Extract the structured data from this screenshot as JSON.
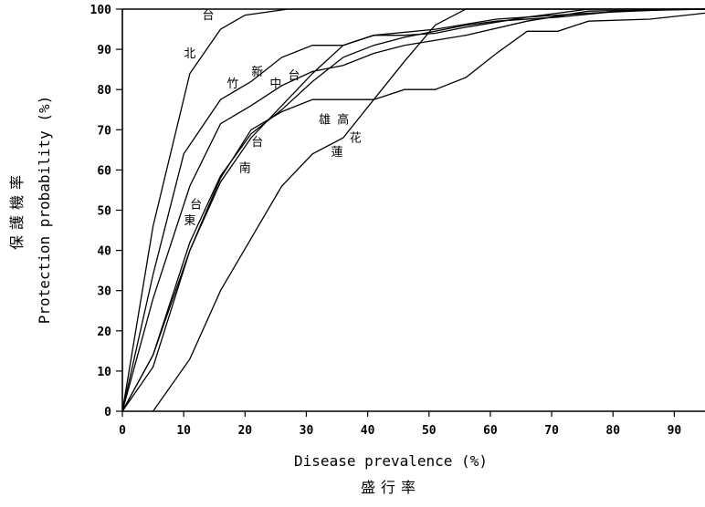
{
  "chart_data": {
    "type": "line",
    "xlabel": "Disease prevalence (%)",
    "xlabel_zh": "盛行率",
    "ylabel": "Protection probability (%)",
    "ylabel_zh": "保護機率",
    "xlim": [
      0,
      95
    ],
    "ylim": [
      0,
      100
    ],
    "xticks": [
      0,
      10,
      20,
      30,
      40,
      50,
      60,
      70,
      80,
      90
    ],
    "yticks": [
      0,
      10,
      20,
      30,
      40,
      50,
      60,
      70,
      80,
      90,
      100
    ],
    "grid": false,
    "series": [
      {
        "name": "台北",
        "x": [
          0,
          5,
          11,
          16,
          20,
          27,
          95
        ],
        "y": [
          0,
          46,
          84,
          95,
          98.5,
          100,
          100
        ]
      },
      {
        "name": "新竹",
        "x": [
          0,
          5,
          10,
          16,
          21,
          26,
          31,
          36,
          41,
          51,
          61,
          76,
          91,
          95
        ],
        "y": [
          0,
          34,
          64,
          77.5,
          82,
          88,
          91,
          91,
          93.5,
          95,
          97.5,
          99,
          100,
          100
        ]
      },
      {
        "name": "台中",
        "x": [
          0,
          5,
          11,
          16,
          21,
          26,
          31,
          36,
          41,
          46,
          56,
          66,
          76,
          95
        ],
        "y": [
          0,
          28,
          56,
          71.5,
          76,
          81,
          84.5,
          86,
          89,
          91,
          93.5,
          97,
          99.5,
          100
        ]
      },
      {
        "name": "台南",
        "x": [
          0,
          5,
          11,
          16,
          21,
          26,
          31,
          36,
          41,
          46,
          56,
          61,
          71,
          81,
          95
        ],
        "y": [
          0,
          14,
          42,
          58.5,
          69,
          75,
          82,
          88,
          91,
          93,
          96,
          97,
          98,
          99.5,
          100
        ]
      },
      {
        "name": "台東",
        "x": [
          0,
          5,
          11,
          16,
          21,
          31,
          36,
          41,
          46,
          51,
          56,
          66,
          76,
          91,
          95
        ],
        "y": [
          0,
          11,
          40,
          57,
          68,
          84,
          91,
          93.5,
          93.5,
          94,
          95.5,
          98,
          100,
          100,
          100
        ]
      },
      {
        "name": "高雄",
        "x": [
          0,
          5,
          11,
          16,
          21,
          26,
          31,
          36,
          41,
          46,
          51,
          56,
          61,
          66,
          71,
          76,
          86,
          95
        ],
        "y": [
          0,
          14,
          40,
          58,
          70,
          74.5,
          77.5,
          77.5,
          77.5,
          80,
          80,
          83,
          89,
          94.5,
          94.5,
          97,
          97.5,
          99
        ]
      },
      {
        "name": "花蓮",
        "x": [
          5,
          11,
          16,
          21,
          26,
          31,
          36,
          41,
          46,
          51,
          56,
          95
        ],
        "y": [
          0,
          13,
          30,
          43,
          56,
          64,
          68,
          77.5,
          87,
          96,
          100,
          100
        ]
      }
    ],
    "labels": [
      {
        "text": "台",
        "x": 14,
        "y": 97.5
      },
      {
        "text": "北",
        "x": 11,
        "y": 88
      },
      {
        "text": "竹",
        "x": 18,
        "y": 80.5
      },
      {
        "text": "新",
        "x": 22,
        "y": 83.5
      },
      {
        "text": "中",
        "x": 25,
        "y": 80.5
      },
      {
        "text": "台",
        "x": 28,
        "y": 82.5
      },
      {
        "text": "雄",
        "x": 33,
        "y": 71.5
      },
      {
        "text": "高",
        "x": 36,
        "y": 71.5
      },
      {
        "text": "台",
        "x": 22,
        "y": 66
      },
      {
        "text": "南",
        "x": 20,
        "y": 59.5
      },
      {
        "text": "蓮",
        "x": 35,
        "y": 63.5
      },
      {
        "text": "花",
        "x": 38,
        "y": 67
      },
      {
        "text": "台",
        "x": 12,
        "y": 50.5
      },
      {
        "text": "東",
        "x": 11,
        "y": 46.5
      }
    ]
  }
}
